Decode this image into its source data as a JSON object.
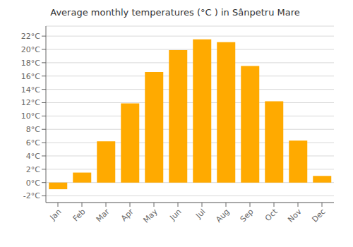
{
  "chart_data": {
    "type": "bar",
    "title": "Average monthly temperatures (°C ) in Sânpetru Mare",
    "categories": [
      "Jan",
      "Feb",
      "Mar",
      "Apr",
      "May",
      "Jun",
      "Jul",
      "Aug",
      "Sep",
      "Oct",
      "Nov",
      "Dec"
    ],
    "values": [
      -1.0,
      1.5,
      6.2,
      11.9,
      16.6,
      19.9,
      21.5,
      21.1,
      17.5,
      12.2,
      6.3,
      1.0
    ],
    "color": "#FFAA00",
    "ylim": [
      -3,
      23.5
    ],
    "yticks": [
      {
        "value": -2,
        "label": "-2°C"
      },
      {
        "value": 0,
        "label": "0°C"
      },
      {
        "value": 2,
        "label": "2°C"
      },
      {
        "value": 4,
        "label": "4°C"
      },
      {
        "value": 6,
        "label": "6°C"
      },
      {
        "value": 8,
        "label": "8°C"
      },
      {
        "value": 10,
        "label": "10°C"
      },
      {
        "value": 12,
        "label": "12°C"
      },
      {
        "value": 14,
        "label": "14°C"
      },
      {
        "value": 16,
        "label": "16°C"
      },
      {
        "value": 18,
        "label": "18°C"
      },
      {
        "value": 20,
        "label": "20°C"
      },
      {
        "value": 22,
        "label": "22°C"
      }
    ],
    "grid": true
  }
}
